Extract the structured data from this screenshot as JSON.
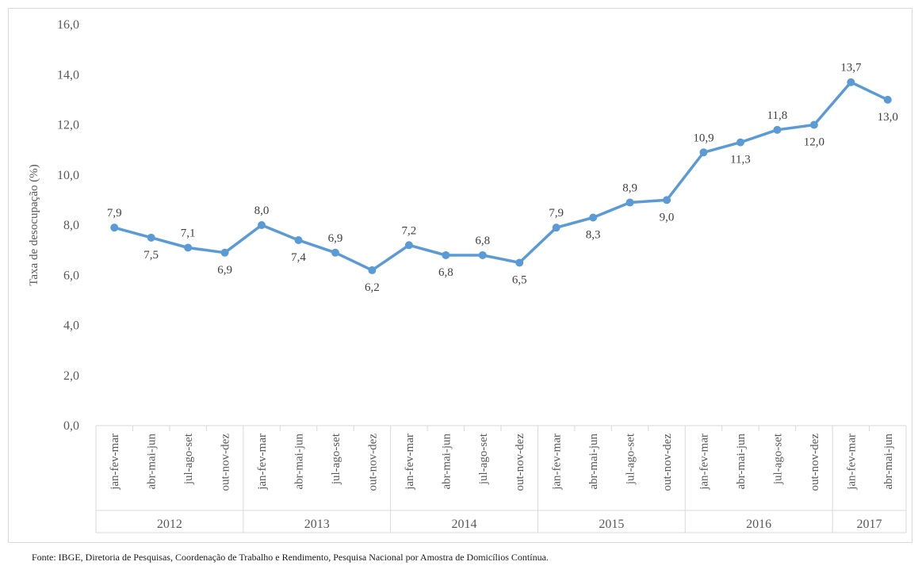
{
  "chart_data": {
    "type": "line",
    "ylabel": "Taxa de desocupação (%)",
    "xlabel": "",
    "ylim": [
      0,
      16
    ],
    "ytick_step": 2,
    "ytick_labels": [
      "0,0",
      "2,0",
      "4,0",
      "6,0",
      "8,0",
      "10,0",
      "12,0",
      "14,0",
      "16,0"
    ],
    "grid": false,
    "legend": "none",
    "series_color": "#5b9bd5",
    "categories": [
      "jan-fev-mar",
      "abr-mai-jun",
      "jul-ago-set",
      "out-nov-dez",
      "jan-fev-mar",
      "abr-mai-jun",
      "jul-ago-set",
      "out-nov-dez",
      "jan-fev-mar",
      "abr-mai-jun",
      "jul-ago-set",
      "out-nov-dez",
      "jan-fev-mar",
      "abr-mai-jun",
      "jul-ago-set",
      "out-nov-dez",
      "jan-fev-mar",
      "abr-mai-jun",
      "jul-ago-set",
      "out-nov-dez",
      "jan-fev-mar",
      "abr-mai-jun"
    ],
    "groups": [
      {
        "label": "2012",
        "count": 4
      },
      {
        "label": "2013",
        "count": 4
      },
      {
        "label": "2014",
        "count": 4
      },
      {
        "label": "2015",
        "count": 4
      },
      {
        "label": "2016",
        "count": 4
      },
      {
        "label": "2017",
        "count": 2
      }
    ],
    "values": [
      7.9,
      7.5,
      7.1,
      6.9,
      8.0,
      7.4,
      6.9,
      6.2,
      7.2,
      6.8,
      6.8,
      6.5,
      7.9,
      8.3,
      8.9,
      9.0,
      10.9,
      11.3,
      11.8,
      12.0,
      13.7,
      13.0
    ],
    "data_labels": [
      "7,9",
      "7,5",
      "7,1",
      "6,9",
      "8,0",
      "7,4",
      "6,9",
      "6,2",
      "7,2",
      "6,8",
      "6,8",
      "6,5",
      "7,9",
      "8,3",
      "8,9",
      "9,0",
      "10,9",
      "11,3",
      "11,8",
      "12,0",
      "13,7",
      "13,0"
    ],
    "label_positions": [
      "above",
      "below",
      "above",
      "below",
      "above",
      "below",
      "above",
      "below",
      "above",
      "below",
      "above",
      "below",
      "above",
      "below",
      "above",
      "below",
      "above",
      "below",
      "above",
      "below",
      "above",
      "below"
    ]
  },
  "source_note": "Fonte: IBGE, Diretoria de Pesquisas, Coordenação de Trabalho e Rendimento, Pesquisa Nacional por Amostra de Domicílios Contínua."
}
